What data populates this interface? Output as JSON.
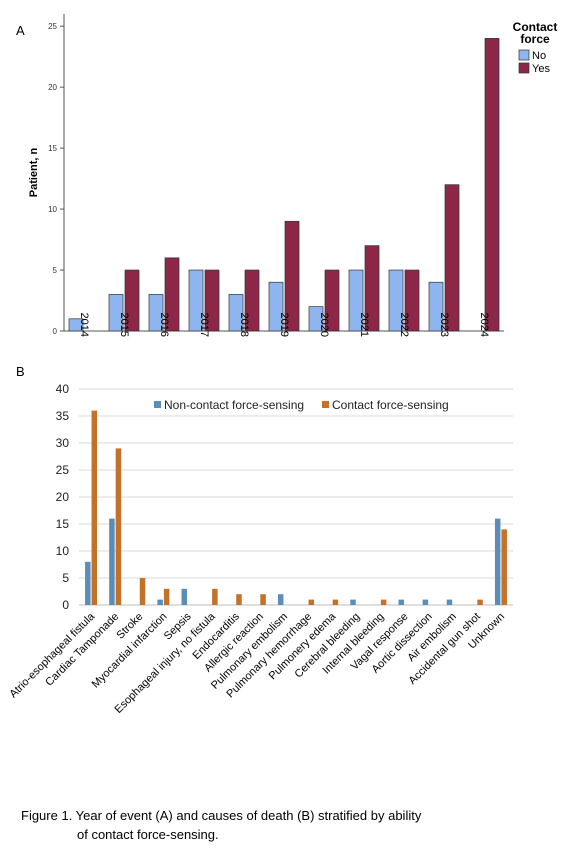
{
  "figure": {
    "caption_line1": "Figure 1. Year of event (A) and causes of death (B) stratified by ability",
    "caption_line2": "of contact force-sensing."
  },
  "chart_data": [
    {
      "panel": "A",
      "type": "bar",
      "ylabel": "Patient, n",
      "xlabel": "",
      "ylim": [
        0,
        26
      ],
      "yticks": [
        0,
        5,
        10,
        15,
        20,
        25
      ],
      "grid": false,
      "legend": {
        "title_line1": "Contact",
        "title_line2": "force",
        "position": "top-right-outside"
      },
      "categories": [
        "2014",
        "2015",
        "2016",
        "2017",
        "2018",
        "2019",
        "2020",
        "2021",
        "2022",
        "2023",
        "2024"
      ],
      "series": [
        {
          "name": "No",
          "color": "#8FB5EE",
          "values": [
            1,
            3,
            3,
            5,
            3,
            4,
            2,
            5,
            5,
            4,
            0
          ]
        },
        {
          "name": "Yes",
          "color": "#8C2748",
          "values": [
            0,
            5,
            6,
            5,
            5,
            9,
            5,
            7,
            5,
            12,
            24
          ]
        }
      ]
    },
    {
      "panel": "B",
      "type": "bar",
      "ylabel": "",
      "xlabel": "",
      "ylim": [
        0,
        40
      ],
      "yticks": [
        0,
        5,
        10,
        15,
        20,
        25,
        30,
        35,
        40
      ],
      "grid": true,
      "legend": {
        "position": "top-center"
      },
      "categories": [
        "Atrio-esophageal fistula",
        "Cardiac Tamponade",
        "Stroke",
        "Myocardial infarction",
        "Sepsis",
        "Esophageal injury, no fistula",
        "Endocarditis",
        "Allergic reaction",
        "Pulmonary embolism",
        "Pulmonary hemorrhage",
        "Pulmonery edema",
        "Cerebral bleeding",
        "Internal bleeding",
        "Vagal response",
        "Aortic dissection",
        "Air embolism",
        "Accidental gun shot",
        "Unknown"
      ],
      "series": [
        {
          "name": "Non-contact force-sensing",
          "color": "#5B8DB8",
          "values": [
            8,
            16,
            0,
            1,
            3,
            0,
            0,
            0,
            2,
            0,
            0,
            1,
            0,
            1,
            1,
            1,
            0,
            16
          ]
        },
        {
          "name": "Contact force-sensing",
          "color": "#C4712A",
          "values": [
            36,
            29,
            5,
            3,
            0,
            3,
            2,
            2,
            0,
            1,
            1,
            0,
            1,
            0,
            0,
            0,
            1,
            14
          ]
        }
      ]
    }
  ]
}
